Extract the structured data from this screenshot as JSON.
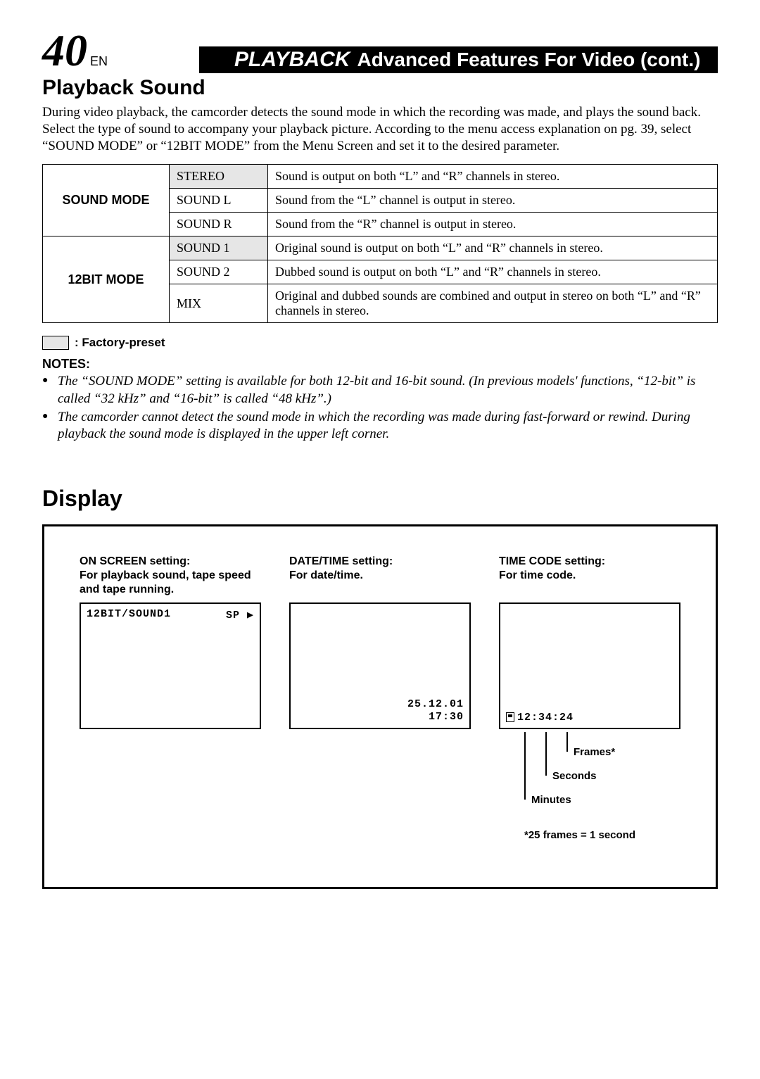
{
  "header": {
    "page_number": "40",
    "lang": "EN",
    "playback": "PLAYBACK",
    "rest": "Advanced Features For Video (cont.)"
  },
  "section1": {
    "title": "Playback Sound",
    "intro": "During video playback, the camcorder detects the sound mode in which the recording was made, and plays the sound back. Select the type of sound to accompany your playback picture. According to the menu access explanation on pg. 39, select “SOUND MODE” or “12BIT MODE” from the Menu Screen and set it to the desired parameter."
  },
  "table": {
    "rows": [
      {
        "mode": "SOUND MODE",
        "rowspan": 3,
        "option": "STEREO",
        "preset": true,
        "desc": "Sound is output on both “L” and “R” channels in stereo."
      },
      {
        "option": "SOUND L",
        "preset": false,
        "desc": "Sound from the “L” channel is output in stereo."
      },
      {
        "option": "SOUND R",
        "preset": false,
        "desc": "Sound from the “R” channel is output in stereo."
      },
      {
        "mode": "12BIT MODE",
        "rowspan": 3,
        "option": "SOUND 1",
        "preset": true,
        "desc": "Original sound is output on both “L” and “R” channels in stereo."
      },
      {
        "option": "SOUND 2",
        "preset": false,
        "desc": "Dubbed sound is output on both “L” and “R” channels in stereo."
      },
      {
        "option": "MIX",
        "preset": false,
        "desc": "Original and dubbed sounds are combined and output in stereo on both “L” and “R” channels in stereo."
      }
    ]
  },
  "legend": ": Factory-preset",
  "notes_heading": "NOTES:",
  "notes": [
    "The “SOUND MODE” setting is available for both 12-bit and 16-bit sound. (In previous models' functions, “12-bit” is called “32 kHz” and “16-bit” is called “48 kHz”.)",
    "The camcorder cannot detect the sound mode in which the recording was made during fast-forward or rewind. During playback the sound mode is displayed in the upper left corner."
  ],
  "display": {
    "heading": "Display",
    "col1": {
      "title": "ON SCREEN setting:\nFor playback sound, tape speed and tape running.",
      "screen_top_left": "12BIT/SOUND1",
      "screen_top_right": "SP ▶"
    },
    "col2": {
      "title": "DATE/TIME setting:\nFor date/time.",
      "screen_date": "25.12.01",
      "screen_time": "17:30"
    },
    "col3": {
      "title": "TIME CODE setting:\nFor time code.",
      "timecode": "12:34:24",
      "labels": {
        "frames": "Frames*",
        "seconds": "Seconds",
        "minutes": "Minutes"
      },
      "footnote": "*25 frames = 1 second"
    }
  }
}
